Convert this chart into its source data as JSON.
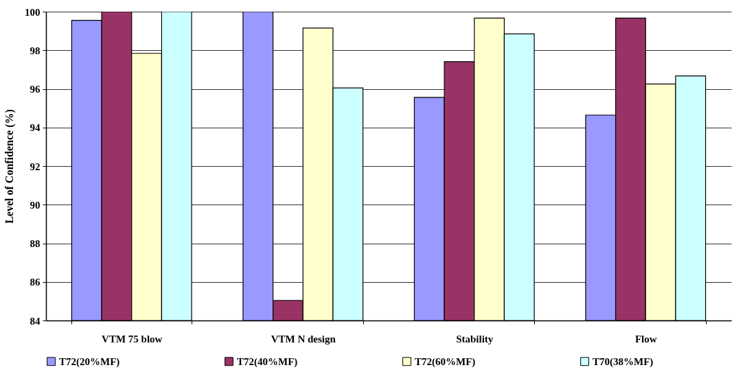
{
  "chart_data": {
    "type": "bar",
    "ylabel": "Level of Confidence (%)",
    "categories": [
      "VTM 75 blow",
      "VTM N design",
      "Stability",
      "Flow"
    ],
    "series": [
      {
        "name": "T72(20%MF)",
        "color": "#9999ff",
        "values": [
          99.55,
          100,
          95.56,
          94.64
        ]
      },
      {
        "name": "T72(40%MF)",
        "color": "#993366",
        "values": [
          100,
          85.04,
          97.41,
          99.67
        ]
      },
      {
        "name": "T72(60%MF)",
        "color": "#ffffcc",
        "values": [
          97.84,
          99.15,
          99.67,
          96.25
        ]
      },
      {
        "name": "T70(38%MF)",
        "color": "#ccffff",
        "values": [
          100,
          96.05,
          98.85,
          96.67
        ]
      }
    ],
    "ylim": [
      84,
      100
    ],
    "yticks": [
      84,
      86,
      88,
      90,
      92,
      94,
      96,
      98,
      100
    ],
    "grid": "y",
    "legend": "bottom"
  }
}
